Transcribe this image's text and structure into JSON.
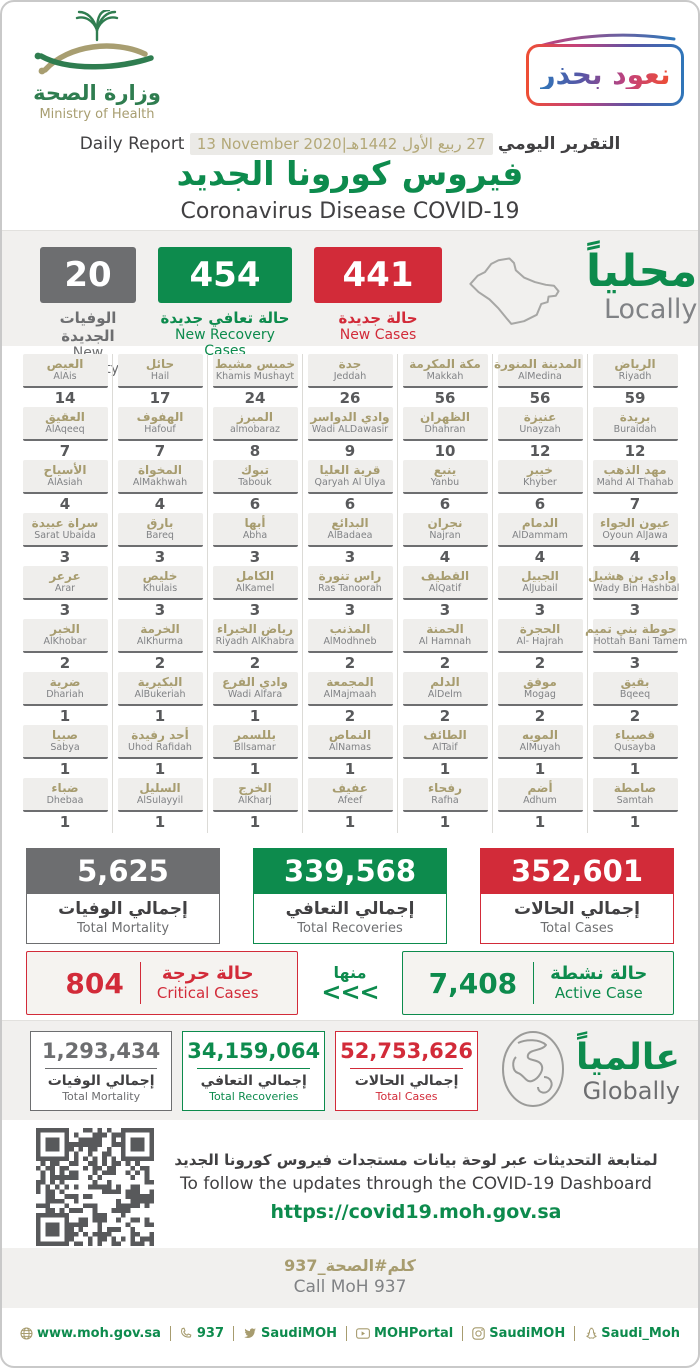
{
  "colors": {
    "green": "#0d8b4d",
    "red": "#d22b39",
    "gray": "#6d6e70",
    "tan": "#a79c6f",
    "dark": "#414042",
    "band": "#f1f0ee"
  },
  "header": {
    "logo_ar": "وزارة الصحة",
    "logo_en": "Ministry of Health",
    "badge": "نعود بحذر",
    "report_label_en": "Daily Report",
    "report_label_ar": "التقرير اليومي",
    "date_en": "13 November 2020",
    "date_ar": "27 ربيع الأول 1442هـ",
    "title_ar": "فيروس كورونا الجديد",
    "title_en": "Coronavirus Disease COVID-19"
  },
  "local": {
    "heading_ar": "محلياً",
    "heading_en": "Locally",
    "stats": [
      {
        "value": "20",
        "label_ar": "الوفيات الجديدة",
        "label_en": "New Mortality",
        "color": "#6d6e70"
      },
      {
        "value": "454",
        "label_ar": "حالة تعافي جديدة",
        "label_en": "New Recovery Cases",
        "color": "#0d8b4d"
      },
      {
        "value": "441",
        "label_ar": "حالة جديدة",
        "label_en": "New Cases",
        "color": "#d22b39"
      }
    ]
  },
  "cities": {
    "columns": [
      [
        {
          "ar": "الرياض",
          "en": "Riyadh",
          "v": "59"
        },
        {
          "ar": "بريدة",
          "en": "Buraidah",
          "v": "12"
        },
        {
          "ar": "مهد الذهب",
          "en": "Mahd Al Thahab",
          "v": "7"
        },
        {
          "ar": "عيون الجواء",
          "en": "Oyoun AlJawa",
          "v": "4"
        },
        {
          "ar": "وادي بن هشبل",
          "en": "Wady Bin Hashbal",
          "v": "3"
        },
        {
          "ar": "حوطة بني تميم",
          "en": "Hottah Bani Tamem",
          "v": "3"
        },
        {
          "ar": "بقيق",
          "en": "Bqeeq",
          "v": "2"
        },
        {
          "ar": "قصيباء",
          "en": "Qusayba",
          "v": "1"
        },
        {
          "ar": "صامطة",
          "en": "Samtah",
          "v": "1"
        }
      ],
      [
        {
          "ar": "المدينة المنورة",
          "en": "AlMedina",
          "v": "56"
        },
        {
          "ar": "عنيزة",
          "en": "Unayzah",
          "v": "12"
        },
        {
          "ar": "خيبر",
          "en": "Khyber",
          "v": "6"
        },
        {
          "ar": "الدمام",
          "en": "AlDammam",
          "v": "4"
        },
        {
          "ar": "الجبيل",
          "en": "AlJubail",
          "v": "3"
        },
        {
          "ar": "الحجرة",
          "en": "Al- Hajrah",
          "v": "2"
        },
        {
          "ar": "موفق",
          "en": "Mogag",
          "v": "2"
        },
        {
          "ar": "المويه",
          "en": "AlMuyah",
          "v": "1"
        },
        {
          "ar": "أضم",
          "en": "Adhum",
          "v": "1"
        }
      ],
      [
        {
          "ar": "مكة المكرمة",
          "en": "Makkah",
          "v": "56"
        },
        {
          "ar": "الظهران",
          "en": "Dhahran",
          "v": "10"
        },
        {
          "ar": "ينبع",
          "en": "Yanbu",
          "v": "6"
        },
        {
          "ar": "نجران",
          "en": "Najran",
          "v": "4"
        },
        {
          "ar": "القطيف",
          "en": "AlQatif",
          "v": "3"
        },
        {
          "ar": "الحمنة",
          "en": "Al Hamnah",
          "v": "2"
        },
        {
          "ar": "الدلم",
          "en": "AlDelm",
          "v": "2"
        },
        {
          "ar": "الطائف",
          "en": "AlTaif",
          "v": "1"
        },
        {
          "ar": "رفحاء",
          "en": "Rafha",
          "v": "1"
        }
      ],
      [
        {
          "ar": "جدة",
          "en": "Jeddah",
          "v": "26"
        },
        {
          "ar": "وادي الدواسر",
          "en": "Wadi ALDawasir",
          "v": "9"
        },
        {
          "ar": "قرية العليا",
          "en": "Qaryah Al Ulya",
          "v": "6"
        },
        {
          "ar": "البدائع",
          "en": "AlBadaea",
          "v": "3"
        },
        {
          "ar": "راس تنورة",
          "en": "Ras Tanoorah",
          "v": "3"
        },
        {
          "ar": "المذنب",
          "en": "AlModhneb",
          "v": "2"
        },
        {
          "ar": "المجمعة",
          "en": "AlMajmaah",
          "v": "2"
        },
        {
          "ar": "النماص",
          "en": "AlNamas",
          "v": "1"
        },
        {
          "ar": "عفيف",
          "en": "Afeef",
          "v": "1"
        }
      ],
      [
        {
          "ar": "خميس مشيط",
          "en": "Khamis Mushayt",
          "v": "24"
        },
        {
          "ar": "المبرز",
          "en": "almobaraz",
          "v": "8"
        },
        {
          "ar": "تبوك",
          "en": "Tabouk",
          "v": "6"
        },
        {
          "ar": "أبها",
          "en": "Abha",
          "v": "3"
        },
        {
          "ar": "الكامل",
          "en": "AlKamel",
          "v": "3"
        },
        {
          "ar": "رياض الخبراء",
          "en": "Riyadh AlKhabra",
          "v": "2"
        },
        {
          "ar": "وادي الفرع",
          "en": "Wadi Alfara",
          "v": "1"
        },
        {
          "ar": "بللسمر",
          "en": "Bllsamar",
          "v": "1"
        },
        {
          "ar": "الخرج",
          "en": "AlKharj",
          "v": "1"
        }
      ],
      [
        {
          "ar": "حائل",
          "en": "Hail",
          "v": "17"
        },
        {
          "ar": "الهفوف",
          "en": "Hafouf",
          "v": "7"
        },
        {
          "ar": "المخواة",
          "en": "AlMakhwah",
          "v": "4"
        },
        {
          "ar": "بارق",
          "en": "Bareq",
          "v": "3"
        },
        {
          "ar": "خليص",
          "en": "Khulais",
          "v": "3"
        },
        {
          "ar": "الخرمة",
          "en": "AlKhurma",
          "v": "2"
        },
        {
          "ar": "البكيرية",
          "en": "AlBukeriah",
          "v": "1"
        },
        {
          "ar": "أحد رفيدة",
          "en": "Uhod Rafidah",
          "v": "1"
        },
        {
          "ar": "السليل",
          "en": "AlSulayyil",
          "v": "1"
        }
      ],
      [
        {
          "ar": "العيص",
          "en": "AlAis",
          "v": "14"
        },
        {
          "ar": "العقيق",
          "en": "AlAqeeq",
          "v": "7"
        },
        {
          "ar": "الأسياح",
          "en": "AlAsiah",
          "v": "4"
        },
        {
          "ar": "سراة عبيدة",
          "en": "Sarat Ubaida",
          "v": "3"
        },
        {
          "ar": "عرعر",
          "en": "Arar",
          "v": "3"
        },
        {
          "ar": "الخبر",
          "en": "AlKhobar",
          "v": "2"
        },
        {
          "ar": "ضرية",
          "en": "Dhariah",
          "v": "1"
        },
        {
          "ar": "صبيا",
          "en": "Sabya",
          "v": "1"
        },
        {
          "ar": "ضباء",
          "en": "Dhebaa",
          "v": "1"
        }
      ]
    ]
  },
  "totals": [
    {
      "value": "5,625",
      "label_ar": "إجمالي الوفيات",
      "label_en": "Total Mortality",
      "color": "#6d6e70"
    },
    {
      "value": "339,568",
      "label_ar": "إجمالي التعافي",
      "label_en": "Total Recoveries",
      "color": "#0d8b4d"
    },
    {
      "value": "352,601",
      "label_ar": "إجمالي الحالات",
      "label_en": "Total Cases",
      "color": "#d22b39"
    }
  ],
  "status": {
    "critical": {
      "value": "804",
      "label_ar": "حالة حرجة",
      "label_en": "Critical Cases",
      "color": "#d22b39"
    },
    "connector_label": "منها",
    "connector_arrows": "<<<",
    "active": {
      "value": "7,408",
      "label_ar": "حالة نشطة",
      "label_en": "Active Case",
      "color": "#0d8b4d"
    }
  },
  "global": {
    "heading_ar": "عالمياً",
    "heading_en": "Globally",
    "items": [
      {
        "value": "1,293,434",
        "label_ar": "إجمالي الوفيات",
        "label_en": "Total Mortality",
        "color": "#6d6e70"
      },
      {
        "value": "34,159,064",
        "label_ar": "إجمالي التعافي",
        "label_en": "Total Recoveries",
        "color": "#0d8b4d"
      },
      {
        "value": "52,753,626",
        "label_ar": "إجمالي الحالات",
        "label_en": "Total Cases",
        "color": "#d22b39"
      }
    ]
  },
  "dashboard": {
    "line_ar": "لمتابعة التحديثات عبر لوحة بيانات مستجدات فيروس كورونا الجديد",
    "line_en": "To follow the updates through the COVID-19 Dashboard",
    "url": "https://covid19.moh.gov.sa"
  },
  "call": {
    "ar": "كلم#الصحة_937",
    "en": "Call MoH 937"
  },
  "footer": {
    "items": [
      {
        "icon": "globe",
        "label": "www.moh.gov.sa"
      },
      {
        "icon": "phone",
        "label": "937"
      },
      {
        "icon": "twitter",
        "label": "SaudiMOH"
      },
      {
        "icon": "youtube",
        "label": "MOHPortal"
      },
      {
        "icon": "instagram",
        "label": "SaudiMOH"
      },
      {
        "icon": "snapchat",
        "label": "Saudi_Moh"
      }
    ]
  }
}
